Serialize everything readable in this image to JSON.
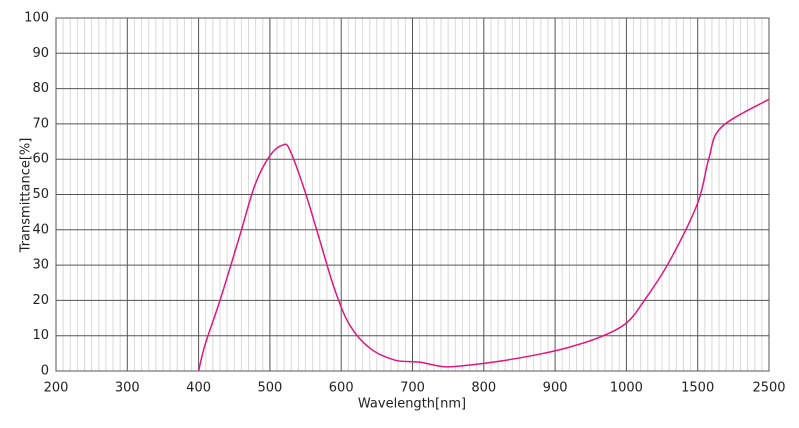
{
  "chart_data": {
    "type": "line",
    "x_label": "Wavelength[nm]",
    "y_label": "Transmittance[%]",
    "x": [
      400,
      409,
      430,
      458,
      479,
      500,
      518,
      528,
      549,
      570,
      591,
      612,
      640,
      675,
      710,
      745,
      781,
      823,
      879,
      921,
      963,
      1000,
      1126,
      1301,
      1500,
      1654,
      1829,
      2500
    ],
    "values": [
      0,
      7.4,
      20,
      38.5,
      52.7,
      61,
      64,
      62.6,
      51,
      37,
      23,
      13,
      6.5,
      3.1,
      2.5,
      1.2,
      1.7,
      2.8,
      4.8,
      6.8,
      9.6,
      13.6,
      20,
      31,
      47.6,
      60,
      69,
      77
    ],
    "color": "#e0177f",
    "xlim": [
      200,
      2500
    ],
    "xticks": [
      200,
      300,
      400,
      500,
      600,
      700,
      800,
      900,
      1000,
      1500,
      2500
    ],
    "xscale": "ticks-evenly-spaced",
    "ylim": [
      0,
      100
    ],
    "yticks": [
      0,
      10,
      20,
      30,
      40,
      50,
      60,
      70,
      80,
      90,
      100
    ],
    "grid": true
  }
}
